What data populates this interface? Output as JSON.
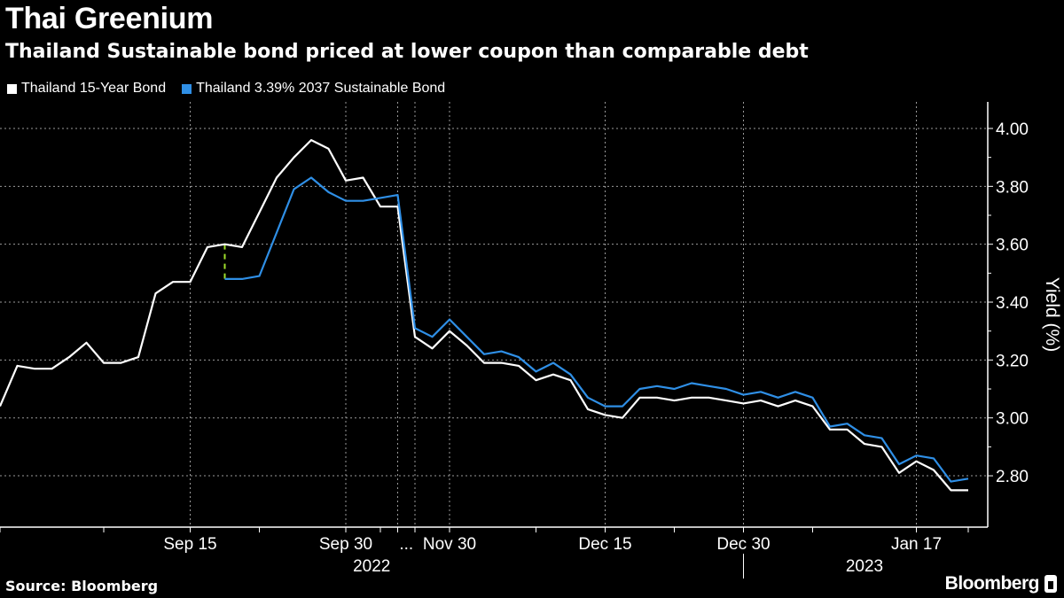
{
  "header": {
    "title": "Thai Greenium",
    "subtitle": "Thailand Sustainable bond priced at lower coupon than comparable debt"
  },
  "footer": {
    "source": "Source: Bloomberg",
    "logo": "Bloomberg"
  },
  "chart_data": {
    "type": "line",
    "title": "Thai Greenium",
    "subtitle": "Thailand Sustainable bond priced at lower coupon than comparable debt",
    "xlabel": "",
    "ylabel": "Yield (%)",
    "ylim": [
      2.7,
      4.05
    ],
    "yticks": [
      "4.00",
      "3.80",
      "3.60",
      "3.40",
      "3.20",
      "3.00",
      "2.80"
    ],
    "ytick_values": [
      4.0,
      3.8,
      3.6,
      3.4,
      3.2,
      3.0,
      2.8
    ],
    "grid": true,
    "legend_position": "top-left",
    "x_index_range": [
      0,
      57
    ],
    "xticks": [
      {
        "label": "Sep 15",
        "index": 11
      },
      {
        "label": "Sep 30",
        "index": 20
      },
      {
        "label": "...",
        "index": 23.5
      },
      {
        "label": "Nov 30",
        "index": 26
      },
      {
        "label": "Dec 15",
        "index": 35
      },
      {
        "label": "Dec 30",
        "index": 43
      },
      {
        "label": "Jan 17",
        "index": 53
      }
    ],
    "year_labels": [
      {
        "label": "2022",
        "index": 21.5
      },
      {
        "label": "2023",
        "index": 50
      }
    ],
    "year_break_index": 43,
    "series": [
      {
        "name": "Thailand 15-Year Bond",
        "color": "#ffffff",
        "start_index": 0,
        "values": [
          3.04,
          3.18,
          3.17,
          3.17,
          3.21,
          3.26,
          3.19,
          3.19,
          3.21,
          3.43,
          3.47,
          3.47,
          3.59,
          3.6,
          3.59,
          3.71,
          3.83,
          3.9,
          3.96,
          3.93,
          3.82,
          3.83,
          3.73,
          3.73,
          3.28,
          3.24,
          3.3,
          3.25,
          3.19,
          3.19,
          3.18,
          3.13,
          3.15,
          3.13,
          3.03,
          3.01,
          3.0,
          3.07,
          3.07,
          3.06,
          3.07,
          3.07,
          3.06,
          3.05,
          3.06,
          3.04,
          3.06,
          3.04,
          2.96,
          2.96,
          2.91,
          2.9,
          2.81,
          2.85,
          2.82,
          2.75,
          2.75
        ]
      },
      {
        "name": "Thailand 3.39% 2037 Sustainable Bond",
        "color": "#2f8fe6",
        "start_index": 13,
        "values": [
          3.48,
          3.48,
          3.49,
          3.64,
          3.79,
          3.83,
          3.78,
          3.75,
          3.75,
          3.76,
          3.77,
          3.31,
          3.28,
          3.34,
          3.28,
          3.22,
          3.23,
          3.21,
          3.16,
          3.19,
          3.15,
          3.07,
          3.04,
          3.04,
          3.1,
          3.11,
          3.1,
          3.12,
          3.11,
          3.1,
          3.08,
          3.09,
          3.07,
          3.09,
          3.07,
          2.97,
          2.98,
          2.94,
          2.93,
          2.84,
          2.87,
          2.86,
          2.78,
          2.79
        ]
      }
    ],
    "annotation": {
      "type": "spread-marker",
      "index": 13,
      "from": 3.6,
      "to": 3.48,
      "color": "#9fe02b"
    }
  }
}
